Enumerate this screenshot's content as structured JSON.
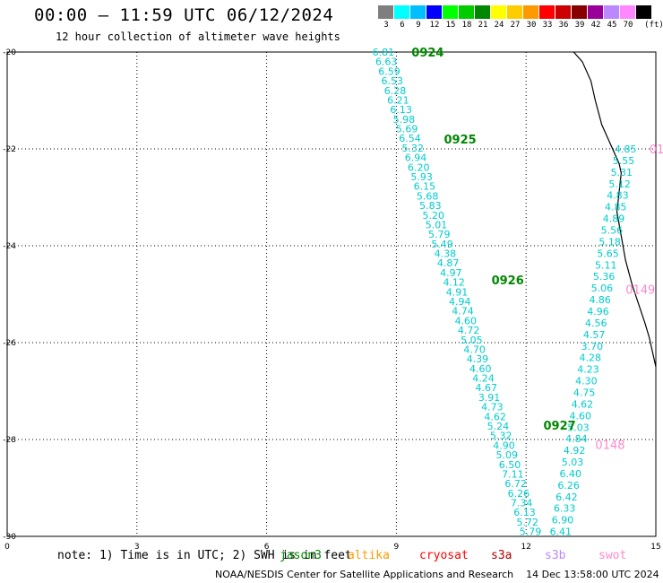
{
  "header": {
    "title": "00:00 – 11:59 UTC 06/12/2024",
    "subtitle": "12 hour collection of altimeter wave heights"
  },
  "legend": {
    "unit_label": "(ft)",
    "bins": [
      {
        "label": "3",
        "color": "#7f7f7f"
      },
      {
        "label": "6",
        "color": "#00ffff"
      },
      {
        "label": "9",
        "color": "#00bfff"
      },
      {
        "label": "12",
        "color": "#0000ff"
      },
      {
        "label": "15",
        "color": "#00ff00"
      },
      {
        "label": "18",
        "color": "#00cc00"
      },
      {
        "label": "21",
        "color": "#008800"
      },
      {
        "label": "24",
        "color": "#ffff00"
      },
      {
        "label": "27",
        "color": "#ffcc00"
      },
      {
        "label": "30",
        "color": "#ff9900"
      },
      {
        "label": "33",
        "color": "#ff0000"
      },
      {
        "label": "36",
        "color": "#cc0000"
      },
      {
        "label": "39",
        "color": "#880000"
      },
      {
        "label": "42",
        "color": "#990099"
      },
      {
        "label": "45",
        "color": "#bb88ff"
      },
      {
        "label": "70",
        "color": "#ff88ff"
      },
      {
        "label": "",
        "color": "#000000"
      }
    ]
  },
  "map": {
    "x_ticks": [
      "0",
      "3",
      "6",
      "9",
      "12",
      "15"
    ],
    "y_ticks": [
      "-20",
      "-22",
      "-24",
      "-26",
      "-28",
      "-30"
    ],
    "x_range": [
      0,
      15
    ],
    "y_range": [
      -20,
      -30
    ],
    "track_color": "#00cccc",
    "time_label_color": "#008800",
    "pink_label_color": "#ff88cc"
  },
  "chart_data": {
    "type": "scatter",
    "tracks": [
      {
        "name": "track-1",
        "start": [
          8.7,
          -20.0
        ],
        "end": [
          12.1,
          -29.9
        ],
        "values": [
          "6.81",
          "6.63",
          "6.59",
          "6.53",
          "6.28",
          "6.21",
          "6.13",
          "5.98",
          "5.69",
          "6.54",
          "5.32",
          "6.94",
          "6.20",
          "5.93",
          "6.15",
          "5.68",
          "5.83",
          "5.20",
          "5.01",
          "5.79",
          "5.49",
          "4.38",
          "4.87",
          "4.97",
          "4.12",
          "4.91",
          "4.94",
          "4.74",
          "4.60",
          "4.72",
          "5.05",
          "4.70",
          "4.39",
          "4.60",
          "4.24",
          "4.67",
          "3.91",
          "4.73",
          "4.62",
          "5.24",
          "5.32",
          "4.90",
          "5.09",
          "6.50",
          "7.11",
          "6.72",
          "6.26",
          "7.34",
          "6.13",
          "5.72",
          "5.79"
        ]
      },
      {
        "name": "track-2",
        "start": [
          14.3,
          -22.0
        ],
        "end": [
          12.8,
          -29.9
        ],
        "values": [
          "4.85",
          "5.55",
          "5.31",
          "5.12",
          "4.83",
          "4.85",
          "4.89",
          "5.56",
          "5.18",
          "5.65",
          "5.11",
          "5.36",
          "5.06",
          "4.86",
          "4.96",
          "4.56",
          "4.57",
          "3.70",
          "4.28",
          "4.23",
          "4.30",
          "4.75",
          "4.62",
          "4.60",
          "5.03",
          "4.84",
          "4.92",
          "5.03",
          "6.40",
          "6.26",
          "6.42",
          "6.33",
          "6.90",
          "6.41"
        ]
      }
    ],
    "time_labels": [
      {
        "text": "0924",
        "x": 9.35,
        "y": -20.0
      },
      {
        "text": "0925",
        "x": 10.1,
        "y": -21.8
      },
      {
        "text": "0926",
        "x": 11.2,
        "y": -24.7
      },
      {
        "text": "0927",
        "x": 12.4,
        "y": -27.7
      }
    ],
    "pink_labels": [
      {
        "text": "01",
        "x": 14.85,
        "y": -22.0
      },
      {
        "text": "0149",
        "x": 14.3,
        "y": -24.9
      },
      {
        "text": "0148",
        "x": 13.6,
        "y": -28.1
      }
    ],
    "coast": [
      [
        13.1,
        -20.0
      ],
      [
        13.3,
        -20.2
      ],
      [
        13.5,
        -20.6
      ],
      [
        13.6,
        -21.0
      ],
      [
        13.75,
        -21.5
      ],
      [
        14.0,
        -22.0
      ],
      [
        14.15,
        -22.3
      ],
      [
        14.2,
        -22.5
      ],
      [
        14.15,
        -22.9
      ],
      [
        14.1,
        -23.3
      ],
      [
        14.2,
        -23.8
      ],
      [
        14.3,
        -24.3
      ],
      [
        14.45,
        -24.8
      ],
      [
        14.6,
        -25.2
      ],
      [
        14.75,
        -25.6
      ],
      [
        14.85,
        -25.9
      ],
      [
        14.95,
        -26.3
      ],
      [
        15.0,
        -26.5
      ]
    ]
  },
  "footer": {
    "note": "note:  1) Time is in UTC; 2) SWH is in feet",
    "satellites": [
      {
        "label": "jason3",
        "color": "#008800",
        "x": 312
      },
      {
        "label": "altika",
        "color": "#ff9900",
        "x": 388
      },
      {
        "label": "cryosat",
        "color": "#ff0000",
        "x": 468
      },
      {
        "label": "s3a",
        "color": "#aa0000",
        "x": 548
      },
      {
        "label": "s3b",
        "color": "#bb88ff",
        "x": 608
      },
      {
        "label": "swot",
        "color": "#ff88cc",
        "x": 668
      }
    ],
    "credit": "NOAA/NESDIS Center for Satellite Applications and Research",
    "timestamp": "14 Dec 13:58:00 UTC 2024"
  }
}
